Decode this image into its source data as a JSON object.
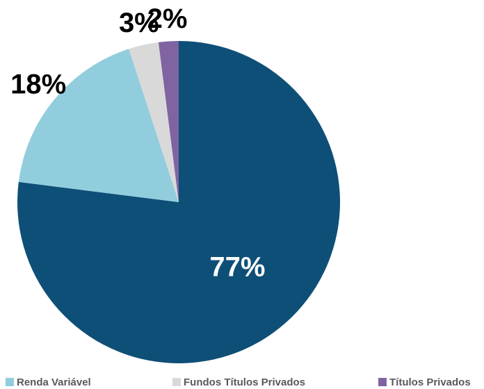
{
  "chart_data": {
    "type": "pie",
    "categories": [
      null,
      "Renda Variável",
      "Fundos Títulos Privados",
      "Títulos Privados"
    ],
    "values": [
      77,
      18,
      3,
      2
    ],
    "value_labels": [
      "77%",
      "18%",
      "3%",
      "2%"
    ],
    "colors": [
      "#0e4f77",
      "#92cddd",
      "#d9d9d9",
      "#8064a2"
    ],
    "legend": "bottom"
  }
}
